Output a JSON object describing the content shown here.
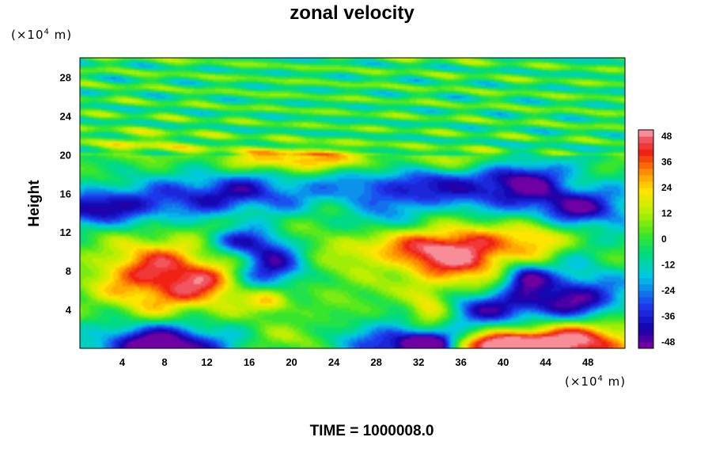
{
  "chart_data": {
    "type": "heatmap",
    "title": "zonal velocity",
    "ylabel": "Height",
    "x_unit_prefix": "(×10",
    "x_unit_exp": "4",
    "x_unit_suffix": " m)",
    "y_unit_prefix": "(×10",
    "y_unit_exp": "4",
    "y_unit_suffix": " m)",
    "xlim": [
      0,
      51.5
    ],
    "ylim": [
      0,
      30
    ],
    "x_ticks": [
      4,
      8,
      12,
      16,
      20,
      24,
      28,
      32,
      36,
      40,
      44,
      48
    ],
    "y_ticks": [
      4,
      8,
      12,
      16,
      20,
      24,
      28
    ],
    "colorbar": {
      "ticks": [
        -48,
        -36,
        -24,
        -12,
        0,
        12,
        24,
        36,
        48
      ],
      "range": [
        -51,
        51
      ],
      "levels": 34,
      "placement": "right"
    },
    "features": [
      {
        "x": 7.5,
        "y": 7.5,
        "sx": 4.2,
        "sy": 2.8,
        "value": 45
      },
      {
        "x": 12.5,
        "y": 6.5,
        "sx": 2.5,
        "sy": 1.8,
        "value": 18
      },
      {
        "x": 18,
        "y": 5,
        "sx": 1.5,
        "sy": 1.0,
        "value": 28
      },
      {
        "x": 18,
        "y": 8.5,
        "sx": 2.2,
        "sy": 1.8,
        "value": -42
      },
      {
        "x": 8,
        "y": 0.3,
        "sx": 4.5,
        "sy": 1.6,
        "value": -58
      },
      {
        "x": 18,
        "y": 1.0,
        "sx": 4.0,
        "sy": 1.2,
        "value": 12
      },
      {
        "x": 30,
        "y": 0.5,
        "sx": 3.5,
        "sy": 1.4,
        "value": -40
      },
      {
        "x": 33,
        "y": 0.3,
        "sx": 1.5,
        "sy": 0.8,
        "value": -52
      },
      {
        "x": 46,
        "y": 0.8,
        "sx": 4.8,
        "sy": 1.8,
        "value": 56
      },
      {
        "x": 40,
        "y": 0.2,
        "sx": 3.0,
        "sy": 0.9,
        "value": 48
      },
      {
        "x": 36.5,
        "y": 9.5,
        "sx": 3.5,
        "sy": 2.2,
        "value": 46
      },
      {
        "x": 31,
        "y": 10.5,
        "sx": 3.5,
        "sy": 1.5,
        "value": 28
      },
      {
        "x": 43,
        "y": 11.5,
        "sx": 2.0,
        "sy": 1.4,
        "value": 30
      },
      {
        "x": 46.5,
        "y": 5,
        "sx": 3.5,
        "sy": 2.0,
        "value": -46
      },
      {
        "x": 39,
        "y": 4,
        "sx": 3.5,
        "sy": 1.5,
        "value": -38
      },
      {
        "x": 42,
        "y": 7.5,
        "sx": 1.5,
        "sy": 1.0,
        "value": -40
      },
      {
        "x": 33,
        "y": 4,
        "sx": 1.5,
        "sy": 1.8,
        "value": 26
      },
      {
        "x": 26,
        "y": 7,
        "sx": 4.0,
        "sy": 2.5,
        "value": 8
      },
      {
        "x": 24,
        "y": 12,
        "sx": 3.0,
        "sy": 2.0,
        "value": 10
      },
      {
        "x": 2,
        "y": 14.5,
        "sx": 5.0,
        "sy": 1.4,
        "value": -40
      },
      {
        "x": 14,
        "y": 16,
        "sx": 5.0,
        "sy": 1.5,
        "value": -36
      },
      {
        "x": 33,
        "y": 16.5,
        "sx": 7.0,
        "sy": 1.6,
        "value": -36
      },
      {
        "x": 47,
        "y": 14.5,
        "sx": 4.0,
        "sy": 1.4,
        "value": -40
      },
      {
        "x": 42,
        "y": 17.5,
        "sx": 3.0,
        "sy": 1.5,
        "value": -30
      },
      {
        "x": 15,
        "y": 11,
        "sx": 2.5,
        "sy": 1.0,
        "value": -30
      },
      {
        "x": 21,
        "y": 19.5,
        "sx": 5.0,
        "sy": 0.9,
        "value": 34
      },
      {
        "x": 36,
        "y": 19.3,
        "sx": 3.0,
        "sy": 0.8,
        "value": 20
      },
      {
        "x": 6,
        "y": 21,
        "sx": 4.0,
        "sy": 1.0,
        "value": 14
      },
      {
        "x": 28,
        "y": 13,
        "sx": 3.0,
        "sy": 1.2,
        "value": -18
      }
    ]
  },
  "footer": {
    "time_text": "TIME = 1000008.0"
  }
}
